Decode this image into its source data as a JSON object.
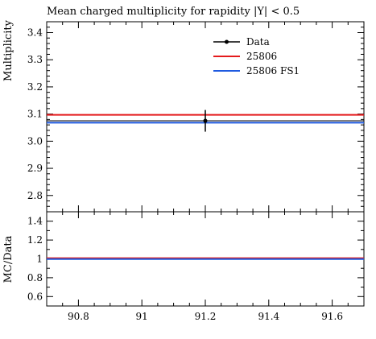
{
  "chart_data": {
    "type": "line",
    "title": "Mean charged multiplicity for rapidity |Y| < 0.5",
    "xlabel": "",
    "xlim": [
      90.7,
      91.7
    ],
    "x_ticks": [
      90.8,
      91,
      91.2,
      91.4,
      91.6
    ],
    "x_tick_labels": [
      "90.8",
      "91",
      "91.2",
      "91.4",
      "91.6"
    ],
    "main_panel": {
      "ylabel": "Multiplicity",
      "ylim": [
        2.74,
        3.44
      ],
      "y_ticks": [
        2.8,
        2.9,
        3.0,
        3.1,
        3.2,
        3.3,
        3.4
      ],
      "y_tick_labels": [
        "2.8",
        "2.9",
        "3.0",
        "3.1",
        "3.2",
        "3.3",
        "3.4"
      ],
      "series": [
        {
          "name": "Data",
          "color": "#000000",
          "x": [
            91.2
          ],
          "y": [
            3.075
          ],
          "yerr": [
            0.04
          ]
        },
        {
          "name": "25806",
          "color": "#e41a1c",
          "x": [
            90.7,
            91.7
          ],
          "y": [
            3.097,
            3.097
          ]
        },
        {
          "name": "25806 FS1",
          "color": "#1f5ae0",
          "x": [
            90.7,
            91.7
          ],
          "y": [
            3.068,
            3.068
          ]
        }
      ],
      "data_band_y": 3.075,
      "legend": [
        "Data",
        "25806",
        "25806 FS1"
      ],
      "legend_position": "top-right"
    },
    "ratio_panel": {
      "ylabel": "MC/Data",
      "ylim": [
        0.5,
        1.5
      ],
      "y_ticks": [
        0.6,
        0.8,
        1.0,
        1.2,
        1.4
      ],
      "y_tick_labels": [
        "0.6",
        "0.8",
        "1",
        "1.2",
        "1.4"
      ],
      "series": [
        {
          "name": "25806",
          "color": "#e41a1c",
          "y": 1.007
        },
        {
          "name": "25806 FS1",
          "color": "#1f5ae0",
          "y": 0.998
        }
      ],
      "reference_y": 1.0
    }
  }
}
